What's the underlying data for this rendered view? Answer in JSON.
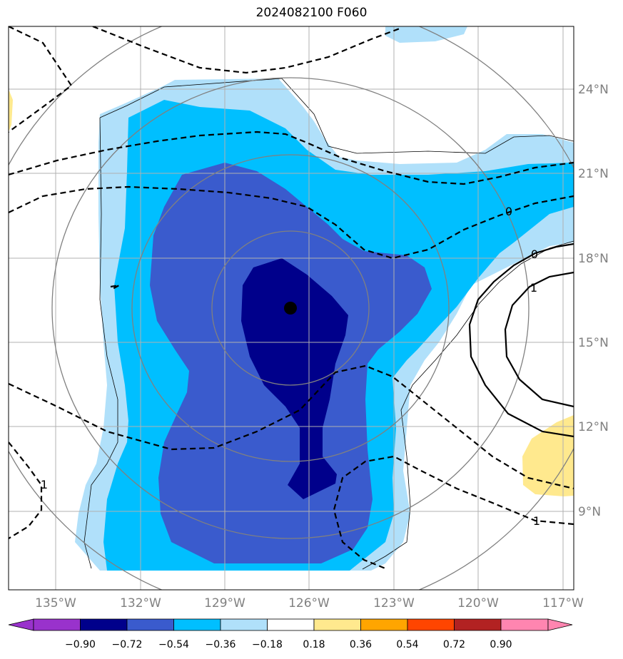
{
  "title": "2024082100 F060",
  "map": {
    "lon_labels": [
      "135°W",
      "132°W",
      "129°W",
      "126°W",
      "123°W",
      "120°W",
      "117°W"
    ],
    "lat_labels": [
      "24°N",
      "21°N",
      "18°N",
      "15°N",
      "12°N",
      "9°N"
    ],
    "contour_labels": [
      "0",
      "0",
      "1",
      "1",
      "1"
    ],
    "center_marker": "storm-center",
    "colors": {
      "grid": "#b0b0b0",
      "range_rings": "#808080",
      "contour": "#000000"
    }
  },
  "colorbar": {
    "ticks": [
      "−0.90",
      "−0.72",
      "−0.54",
      "−0.36",
      "−0.18",
      "0.18",
      "0.36",
      "0.54",
      "0.72",
      "0.90"
    ],
    "colors": [
      "#9932cc",
      "#00008b",
      "#3a5bcd",
      "#00bfff",
      "#b0e0fa",
      "#ffffff",
      "#ffe98e",
      "#ffa500",
      "#ff4500",
      "#b22222",
      "#ff85b0"
    ]
  }
}
